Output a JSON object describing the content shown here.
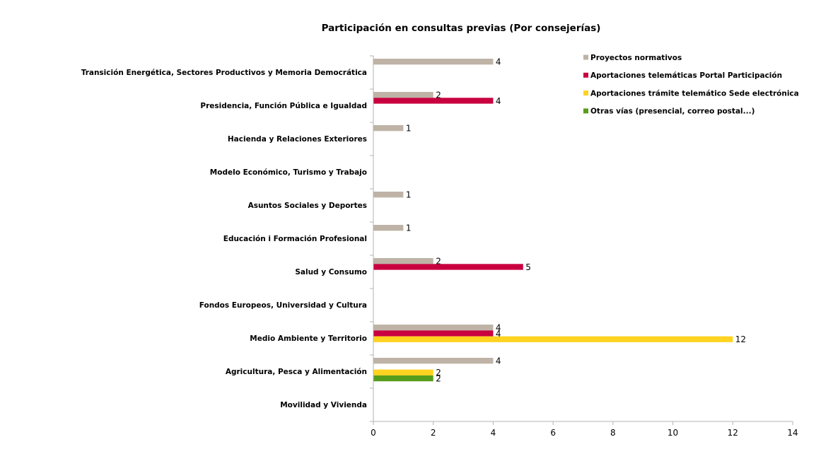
{
  "chart_data": {
    "type": "bar",
    "orientation": "horizontal",
    "title": "Participación en consultas previas (Por consejerías)",
    "categories": [
      "Transición Energética, Sectores Productivos y Memoria Democrática",
      "Presidencia, Función Pública e Igualdad",
      "Hacienda y Relaciones Exteriores",
      "Modelo Económico, Turismo y Trabajo",
      "Asuntos Sociales y Deportes",
      "Educación i Formación Profesional",
      "Salud y  Consumo",
      "Fondos Europeos, Universidad y Cultura",
      "Medio Ambiente y Territorio",
      "Agricultura, Pesca y Alimentación",
      "Movilidad y Vivienda"
    ],
    "series": [
      {
        "name": "Proyectos normativos",
        "color": "#beb3a6",
        "values": [
          4,
          2,
          1,
          0,
          1,
          1,
          2,
          0,
          4,
          4,
          0
        ]
      },
      {
        "name": "Aportaciones telemáticas Portal Participación",
        "color": "#c8003f",
        "values": [
          0,
          4,
          0,
          0,
          0,
          0,
          5,
          0,
          4,
          0,
          0
        ]
      },
      {
        "name": "Aportaciones trámite telemático Sede electrónica",
        "color": "#ffd320",
        "values": [
          0,
          0,
          0,
          0,
          0,
          0,
          0,
          0,
          12,
          2,
          0
        ]
      },
      {
        "name": "Otras vías (presencial, correo postal...)",
        "color": "#579d1c",
        "values": [
          0,
          0,
          0,
          0,
          0,
          0,
          0,
          0,
          0,
          2,
          0
        ]
      }
    ],
    "xlim": [
      0,
      14
    ],
    "xticks": [
      0,
      2,
      4,
      6,
      8,
      10,
      12,
      14
    ],
    "xlabel": "",
    "ylabel": "",
    "grid": false,
    "legend": "top-right",
    "data_labels": "shown for non-zero values"
  }
}
